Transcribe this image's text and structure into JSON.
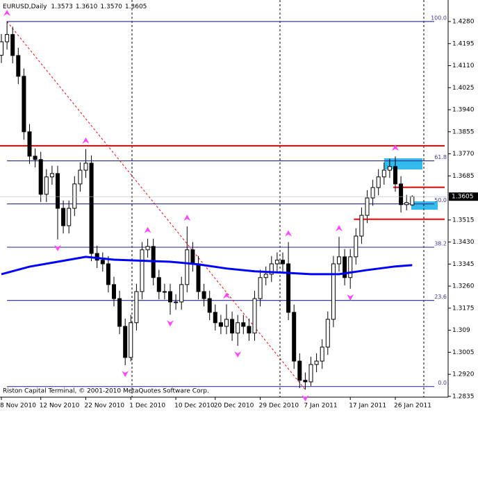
{
  "chart_data": {
    "type": "candlestick",
    "symbol": "EURUSD,Daily",
    "header_values": [
      "1.3573",
      "1.3610",
      "1.3570",
      "1.3605"
    ],
    "footer": "Riston Capital Terminal, © 2001-2010 MetaQuotes Software Corp.",
    "categories": [
      "8 Nov 2010",
      null,
      null,
      null,
      null,
      null,
      null,
      "12 Nov 2010",
      null,
      null,
      null,
      null,
      null,
      null,
      null,
      "22 Nov 2010",
      null,
      null,
      null,
      null,
      null,
      null,
      null,
      "1 Dec 2010",
      null,
      null,
      null,
      null,
      null,
      null,
      null,
      "10 Dec 2010",
      null,
      null,
      null,
      null,
      null,
      null,
      "20 Dec 2010",
      null,
      null,
      null,
      null,
      null,
      null,
      null,
      "29 Dec 2010",
      null,
      null,
      null,
      null,
      null,
      null,
      null,
      "7 Jan 2011",
      null,
      null,
      null,
      null,
      null,
      null,
      null,
      "17 Jan 2011",
      null,
      null,
      null,
      null,
      null,
      null,
      null,
      "26 Jan 2011",
      null,
      null,
      null
    ],
    "open": [
      1.415,
      1.4202,
      1.423,
      1.4149,
      1.4069,
      1.3855,
      1.3761,
      1.3748,
      1.3614,
      1.3681,
      1.3694,
      1.356,
      1.3493,
      1.356,
      1.3654,
      1.3707,
      1.3734,
      1.3386,
      1.336,
      1.3346,
      1.3266,
      1.3212,
      1.3105,
      1.2985,
      1.3119,
      1.3239,
      1.34,
      1.3413,
      1.3293,
      1.3239,
      1.3239,
      1.3199,
      1.3199,
      1.3266,
      1.34,
      1.3346,
      1.3239,
      1.3212,
      1.3159,
      1.3119,
      1.3105,
      1.3132,
      1.3079,
      1.3119,
      1.3105,
      1.3079,
      1.3212,
      1.3293,
      1.3306,
      1.3346,
      1.336,
      1.3346,
      1.3159,
      1.2971,
      1.2897,
      1.2891,
      1.2958,
      1.2971,
      1.3025,
      1.3132,
      1.3346,
      1.3373,
      1.3293,
      1.3373,
      1.3453,
      1.3533,
      1.36,
      1.364,
      1.3681,
      1.3707,
      1.3721,
      1.3654,
      1.3574,
      1.3573
    ],
    "high": [
      1.4232,
      1.428,
      1.426,
      1.4179,
      1.4099,
      1.3885,
      1.3791,
      1.3778,
      1.3711,
      1.3724,
      1.3724,
      1.359,
      1.359,
      1.3684,
      1.3737,
      1.3788,
      1.3764,
      1.3416,
      1.339,
      1.3376,
      1.3296,
      1.3242,
      1.3135,
      1.3149,
      1.3269,
      1.343,
      1.3443,
      1.3443,
      1.3323,
      1.3269,
      1.3269,
      1.3229,
      1.3296,
      1.349,
      1.343,
      1.3376,
      1.3269,
      1.3242,
      1.3189,
      1.3149,
      1.319,
      1.3162,
      1.3149,
      1.3149,
      1.3135,
      1.3242,
      1.3323,
      1.3336,
      1.3376,
      1.339,
      1.339,
      1.343,
      1.3189,
      1.3001,
      1.2927,
      1.2988,
      1.3001,
      1.3055,
      1.3162,
      1.3376,
      1.345,
      1.3403,
      1.3403,
      1.3483,
      1.3563,
      1.363,
      1.367,
      1.3711,
      1.3737,
      1.3751,
      1.376,
      1.3684,
      1.3612,
      1.361
    ],
    "low": [
      1.412,
      1.4172,
      1.4119,
      1.4039,
      1.3825,
      1.3731,
      1.3718,
      1.3584,
      1.3584,
      1.3651,
      1.344,
      1.3463,
      1.3463,
      1.353,
      1.3624,
      1.3677,
      1.3356,
      1.333,
      1.3316,
      1.3236,
      1.3182,
      1.3075,
      1.2955,
      1.297,
      1.3089,
      1.3209,
      1.337,
      1.3263,
      1.3209,
      1.3209,
      1.315,
      1.3169,
      1.3169,
      1.3236,
      1.3316,
      1.3209,
      1.3182,
      1.3129,
      1.3089,
      1.3075,
      1.3075,
      1.3049,
      1.303,
      1.3075,
      1.3049,
      1.3049,
      1.3182,
      1.3263,
      1.3276,
      1.3316,
      1.3316,
      1.3129,
      1.2941,
      1.2867,
      1.2861,
      1.2875,
      1.2928,
      1.2941,
      1.2995,
      1.3102,
      1.3316,
      1.3263,
      1.325,
      1.3343,
      1.3423,
      1.3503,
      1.357,
      1.361,
      1.3651,
      1.3677,
      1.3624,
      1.3544,
      1.3552,
      1.357
    ],
    "close": [
      1.4202,
      1.423,
      1.4149,
      1.4069,
      1.3855,
      1.3761,
      1.3748,
      1.3614,
      1.3681,
      1.3694,
      1.356,
      1.3493,
      1.356,
      1.3654,
      1.3707,
      1.3734,
      1.3386,
      1.336,
      1.3346,
      1.3266,
      1.3212,
      1.3105,
      1.2985,
      1.3119,
      1.3239,
      1.34,
      1.3413,
      1.3293,
      1.3239,
      1.3239,
      1.3199,
      1.3199,
      1.3266,
      1.34,
      1.3346,
      1.3239,
      1.3212,
      1.3159,
      1.3119,
      1.3105,
      1.3132,
      1.3079,
      1.3119,
      1.3105,
      1.3079,
      1.3212,
      1.3293,
      1.3306,
      1.3346,
      1.336,
      1.3346,
      1.3159,
      1.2971,
      1.2897,
      1.2891,
      1.2958,
      1.2971,
      1.3025,
      1.3132,
      1.3346,
      1.3373,
      1.3293,
      1.3373,
      1.3453,
      1.3533,
      1.36,
      1.364,
      1.3681,
      1.3707,
      1.3721,
      1.3654,
      1.3574,
      1.3582,
      1.3605
    ],
    "up_color": "#ffffff",
    "down_color": "#000000",
    "ma": {
      "color": "#0000ff",
      "x": [
        0,
        5,
        10,
        15,
        20,
        25,
        30,
        35,
        40,
        45,
        50,
        55,
        60,
        65,
        70,
        73
      ],
      "values": [
        1.3306,
        1.3335,
        1.3354,
        1.3373,
        1.3362,
        1.3358,
        1.3354,
        1.3344,
        1.3328,
        1.3317,
        1.3312,
        1.3306,
        1.3306,
        1.3322,
        1.3336,
        1.3341
      ]
    },
    "fib": {
      "color": "#3a3a9a",
      "start": 1,
      "levels": [
        {
          "label": "100.0",
          "price": 1.428
        },
        {
          "label": "61.8",
          "price": 1.3743
        },
        {
          "label": "50.0",
          "price": 1.3577
        },
        {
          "label": "38.2",
          "price": 1.341
        },
        {
          "label": "23.6",
          "price": 1.3205
        },
        {
          "label": "0.0",
          "price": 1.2873
        }
      ]
    },
    "red_lines": {
      "color": "#ff0000",
      "lines": [
        {
          "price": 1.3801,
          "start": 0
        },
        {
          "price": 1.3641,
          "start": 70
        },
        {
          "price": 1.3518,
          "start": 63
        }
      ]
    },
    "trendline": {
      "from": 1,
      "to": 54,
      "color": "#ff0000"
    },
    "fractals": {
      "color": "#ff44ff",
      "up": [
        1,
        15,
        26,
        33,
        40,
        51,
        60,
        70
      ],
      "down": [
        10,
        22,
        30,
        42,
        54,
        62
      ]
    },
    "ylim": [
      1.2832,
      1.4363
    ],
    "yticks": [
      {
        "value": 1.428,
        "label": "1.4280"
      },
      1.4195,
      {
        "value": 1.411,
        "label": "1.4110"
      },
      1.4025,
      {
        "value": 1.394,
        "label": "1.3940"
      },
      1.3855,
      {
        "value": 1.377,
        "label": "1.3770"
      },
      1.3685,
      1.3515,
      {
        "value": 1.343,
        "label": "1.3430"
      },
      1.3345,
      {
        "value": 1.326,
        "label": "1.3260"
      },
      1.3175,
      1.309,
      1.3005,
      {
        "value": 1.292,
        "label": "1.2920"
      },
      1.2835
    ]
  }
}
